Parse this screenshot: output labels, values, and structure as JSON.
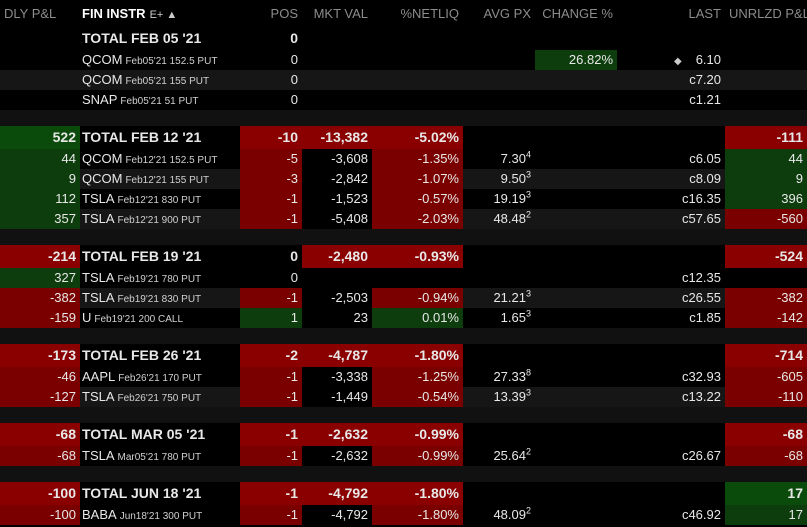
{
  "headers": {
    "dly": "DLY P&L",
    "inst": "FIN INSTR",
    "inst_suffix": "E+ ▲",
    "pos": "POS",
    "mkt": "MKT VAL",
    "net": "%NETLIQ",
    "avg": "AVG PX",
    "chg": "CHANGE %",
    "last": "LAST",
    "unr": "UNRLZD P&L"
  },
  "groups": [
    {
      "total": {
        "dly": "",
        "inst": "TOTAL FEB 05 '21",
        "pos": "0",
        "mkt": "",
        "net": "",
        "unr": ""
      },
      "rows": [
        {
          "dly": "",
          "sym": "QCOM",
          "desc": "Feb05'21 152.5 PUT",
          "pos": "0",
          "mkt": "",
          "net": "",
          "avg": "",
          "avgsup": "",
          "chg": "26.82%",
          "last": "6.10",
          "unr": ""
        },
        {
          "dly": "",
          "sym": "QCOM",
          "desc": "Feb05'21 155 PUT",
          "pos": "0",
          "mkt": "",
          "net": "",
          "avg": "",
          "avgsup": "",
          "chg": "",
          "last": "c7.20",
          "unr": ""
        },
        {
          "dly": "",
          "sym": "SNAP",
          "desc": "Feb05'21 51 PUT",
          "pos": "0",
          "mkt": "",
          "net": "",
          "avg": "",
          "avgsup": "",
          "chg": "",
          "last": "c1.21",
          "unr": ""
        }
      ]
    },
    {
      "total": {
        "dly": "522",
        "inst": "TOTAL FEB 12 '21",
        "pos": "-10",
        "mkt": "-13,382",
        "net": "-5.02%",
        "unr": "-111"
      },
      "rows": [
        {
          "dly": "44",
          "sym": "QCOM",
          "desc": "Feb12'21 152.5 PUT",
          "pos": "-5",
          "mkt": "-3,608",
          "net": "-1.35%",
          "avg": "7.30",
          "avgsup": "4",
          "chg": "",
          "last": "c6.05",
          "unr": "44"
        },
        {
          "dly": "9",
          "sym": "QCOM",
          "desc": "Feb12'21 155 PUT",
          "pos": "-3",
          "mkt": "-2,842",
          "net": "-1.07%",
          "avg": "9.50",
          "avgsup": "3",
          "chg": "",
          "last": "c8.09",
          "unr": "9"
        },
        {
          "dly": "112",
          "sym": "TSLA",
          "desc": "Feb12'21 830 PUT",
          "pos": "-1",
          "mkt": "-1,523",
          "net": "-0.57%",
          "avg": "19.19",
          "avgsup": "3",
          "chg": "",
          "last": "c16.35",
          "unr": "396"
        },
        {
          "dly": "357",
          "sym": "TSLA",
          "desc": "Feb12'21 900 PUT",
          "pos": "-1",
          "mkt": "-5,408",
          "net": "-2.03%",
          "avg": "48.48",
          "avgsup": "2",
          "chg": "",
          "last": "c57.65",
          "unr": "-560"
        }
      ]
    },
    {
      "total": {
        "dly": "-214",
        "inst": "TOTAL FEB 19 '21",
        "pos": "0",
        "mkt": "-2,480",
        "net": "-0.93%",
        "unr": "-524"
      },
      "rows": [
        {
          "dly": "327",
          "sym": "TSLA",
          "desc": "Feb19'21 780 PUT",
          "pos": "0",
          "mkt": "",
          "net": "",
          "avg": "",
          "avgsup": "",
          "chg": "",
          "last": "c12.35",
          "unr": ""
        },
        {
          "dly": "-382",
          "sym": "TSLA",
          "desc": "Feb19'21 830 PUT",
          "pos": "-1",
          "mkt": "-2,503",
          "net": "-0.94%",
          "avg": "21.21",
          "avgsup": "3",
          "chg": "",
          "last": "c26.55",
          "unr": "-382"
        },
        {
          "dly": "-159",
          "sym": "U",
          "desc": "Feb19'21 200 CALL",
          "pos": "1",
          "mkt": "23",
          "net": "0.01%",
          "avg": "1.65",
          "avgsup": "3",
          "chg": "",
          "last": "c1.85",
          "unr": "-142"
        }
      ]
    },
    {
      "total": {
        "dly": "-173",
        "inst": "TOTAL FEB 26 '21",
        "pos": "-2",
        "mkt": "-4,787",
        "net": "-1.80%",
        "unr": "-714"
      },
      "rows": [
        {
          "dly": "-46",
          "sym": "AAPL",
          "desc": "Feb26'21 170 PUT",
          "pos": "-1",
          "mkt": "-3,338",
          "net": "-1.25%",
          "avg": "27.33",
          "avgsup": "8",
          "chg": "",
          "last": "c32.93",
          "unr": "-605"
        },
        {
          "dly": "-127",
          "sym": "TSLA",
          "desc": "Feb26'21 750 PUT",
          "pos": "-1",
          "mkt": "-1,449",
          "net": "-0.54%",
          "avg": "13.39",
          "avgsup": "3",
          "chg": "",
          "last": "c13.22",
          "unr": "-110"
        }
      ]
    },
    {
      "total": {
        "dly": "-68",
        "inst": "TOTAL MAR 05 '21",
        "pos": "-1",
        "mkt": "-2,632",
        "net": "-0.99%",
        "unr": "-68"
      },
      "rows": [
        {
          "dly": "-68",
          "sym": "TSLA",
          "desc": "Mar05'21 780 PUT",
          "pos": "-1",
          "mkt": "-2,632",
          "net": "-0.99%",
          "avg": "25.64",
          "avgsup": "2",
          "chg": "",
          "last": "c26.67",
          "unr": "-68"
        }
      ]
    },
    {
      "total": {
        "dly": "-100",
        "inst": "TOTAL JUN 18 '21",
        "pos": "-1",
        "mkt": "-4,792",
        "net": "-1.80%",
        "unr": "17"
      },
      "rows": [
        {
          "dly": "-100",
          "sym": "BABA",
          "desc": "Jun18'21 300 PUT",
          "pos": "-1",
          "mkt": "-4,792",
          "net": "-1.80%",
          "avg": "48.09",
          "avgsup": "2",
          "chg": "",
          "last": "c46.92",
          "unr": "17"
        }
      ]
    }
  ],
  "colors": {
    "positive_bg": "#0a4a0a",
    "negative_bg": "#8a0000",
    "background": "#000000",
    "header_text": "#8c8c8c"
  }
}
